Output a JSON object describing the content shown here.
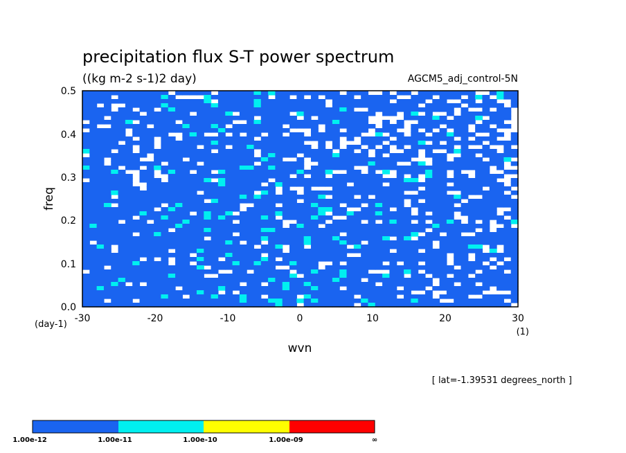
{
  "chart_data": {
    "type": "heatmap",
    "title": "precipitation flux S-T power spectrum",
    "subtitle": "((kg m-2 s-1)2 day)",
    "run_label": "AGCM5_adj_control-5N",
    "xlabel": "wvn",
    "x_unit": "(1)",
    "ylabel": "freq",
    "y_unit": "(day-1)",
    "xlim": [
      -30,
      30
    ],
    "ylim": [
      0.0,
      0.5
    ],
    "x_ticks": [
      "-30",
      "-20",
      "-10",
      "0",
      "10",
      "20",
      "30"
    ],
    "y_ticks": [
      "0.0",
      "0.1",
      "0.2",
      "0.3",
      "0.4",
      "0.5"
    ],
    "note": "[ lat=-1.39531 degrees_north ]",
    "colorbar": {
      "levels": [
        "1.00e-12",
        "1.00e-11",
        "1.00e-10",
        "1.00e-09",
        "∞"
      ],
      "colors": [
        "#1a64f0",
        "#00f0f0",
        "#ffff00",
        "#ff0000"
      ]
    },
    "below_lowest_color": "#ffffff"
  }
}
